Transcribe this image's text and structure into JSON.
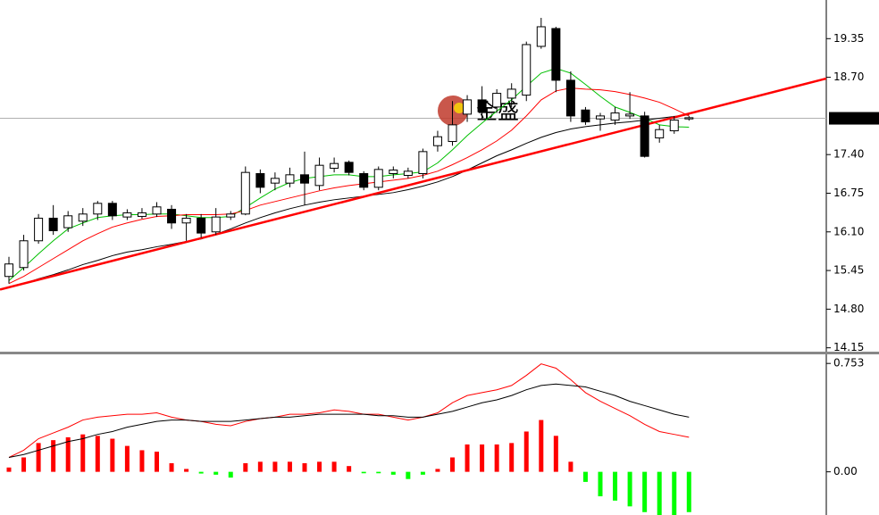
{
  "chart_data": [
    {
      "type": "candlestick",
      "categories": [
        null,
        null,
        null,
        null,
        null,
        null,
        null,
        null,
        null,
        null,
        null,
        null,
        null,
        null,
        null,
        null,
        null,
        null,
        null,
        null,
        null,
        null,
        null,
        null,
        null,
        null,
        null,
        null,
        null,
        null,
        null,
        null,
        null,
        null,
        null,
        null,
        null,
        null,
        null,
        null,
        null,
        null,
        null,
        null,
        null,
        null,
        null
      ],
      "open": [
        15.35,
        15.5,
        15.95,
        16.33,
        16.17,
        16.28,
        16.4,
        16.58,
        16.35,
        16.36,
        16.4,
        16.48,
        16.25,
        16.33,
        16.1,
        16.35,
        16.4,
        17.08,
        16.92,
        16.92,
        17.06,
        16.88,
        17.17,
        17.27,
        17.08,
        16.85,
        17.08,
        17.05,
        17.08,
        17.55,
        17.62,
        18.08,
        18.32,
        18.2,
        18.35,
        18.4,
        19.22,
        19.52,
        18.65,
        18.15,
        18.0,
        17.98,
        18.05,
        18.05,
        17.68,
        17.8,
        18.0
      ],
      "high": [
        15.68,
        16.05,
        16.4,
        16.55,
        16.45,
        16.5,
        16.62,
        16.62,
        16.48,
        16.5,
        16.6,
        16.55,
        16.4,
        16.4,
        16.5,
        16.45,
        17.2,
        17.15,
        17.1,
        17.18,
        17.45,
        17.35,
        17.35,
        17.3,
        17.12,
        17.2,
        17.2,
        17.18,
        17.5,
        17.8,
        18.3,
        18.4,
        18.55,
        18.5,
        18.6,
        19.3,
        19.7,
        19.55,
        18.8,
        18.2,
        18.1,
        18.2,
        18.45,
        18.12,
        17.9,
        18.05,
        18.05
      ],
      "low": [
        15.23,
        15.45,
        15.9,
        16.05,
        16.1,
        16.2,
        16.3,
        16.3,
        16.3,
        16.32,
        16.35,
        16.15,
        15.95,
        16.0,
        16.05,
        16.3,
        16.38,
        16.75,
        16.8,
        16.85,
        16.55,
        16.8,
        17.1,
        17.05,
        16.8,
        16.8,
        17.0,
        17.0,
        17.0,
        17.45,
        17.55,
        17.95,
        18.0,
        18.1,
        18.2,
        18.3,
        19.18,
        18.45,
        17.95,
        17.9,
        17.8,
        17.9,
        18.0,
        17.35,
        17.6,
        17.75,
        17.97
      ],
      "close": [
        15.56,
        15.95,
        16.33,
        16.12,
        16.37,
        16.4,
        16.58,
        16.37,
        16.42,
        16.42,
        16.52,
        16.25,
        16.33,
        16.08,
        16.35,
        16.4,
        17.1,
        16.85,
        17.0,
        17.06,
        16.92,
        17.22,
        17.25,
        17.1,
        16.85,
        17.15,
        17.14,
        17.12,
        17.45,
        17.7,
        17.9,
        18.32,
        18.12,
        18.43,
        18.5,
        19.25,
        19.55,
        18.65,
        18.05,
        17.95,
        18.05,
        18.1,
        18.08,
        17.37,
        17.82,
        17.98,
        18.02
      ],
      "up_color": "#ffffff",
      "down_color": "#000000",
      "lines": [
        {
          "color": "#00c000",
          "values": [
            15.28,
            15.5,
            15.73,
            15.95,
            16.15,
            16.25,
            16.34,
            16.37,
            16.39,
            16.39,
            16.4,
            16.4,
            16.37,
            16.34,
            16.34,
            16.36,
            16.51,
            16.67,
            16.82,
            16.93,
            17.0,
            17.03,
            17.06,
            17.06,
            17.03,
            17.03,
            17.06,
            17.08,
            17.11,
            17.26,
            17.48,
            17.72,
            17.93,
            18.13,
            18.32,
            18.55,
            18.77,
            18.85,
            18.77,
            18.58,
            18.38,
            18.2,
            18.11,
            18.01,
            17.9,
            17.87,
            17.86
          ]
        },
        {
          "color": "#ff0000",
          "values": [
            15.23,
            15.35,
            15.5,
            15.65,
            15.8,
            15.95,
            16.07,
            16.18,
            16.25,
            16.31,
            16.36,
            16.37,
            16.39,
            16.39,
            16.39,
            16.4,
            16.46,
            16.55,
            16.61,
            16.67,
            16.73,
            16.79,
            16.84,
            16.88,
            16.91,
            16.94,
            16.97,
            17.0,
            17.05,
            17.12,
            17.23,
            17.35,
            17.48,
            17.63,
            17.81,
            18.05,
            18.32,
            18.47,
            18.52,
            18.5,
            18.49,
            18.46,
            18.41,
            18.35,
            18.28,
            18.17,
            18.05
          ]
        },
        {
          "color": "#000000",
          "values": [
            15.17,
            15.23,
            15.31,
            15.38,
            15.46,
            15.55,
            15.62,
            15.7,
            15.76,
            15.8,
            15.85,
            15.89,
            15.94,
            15.98,
            16.06,
            16.15,
            16.25,
            16.34,
            16.42,
            16.49,
            16.55,
            16.6,
            16.64,
            16.67,
            16.7,
            16.73,
            16.76,
            16.81,
            16.87,
            16.94,
            17.03,
            17.14,
            17.26,
            17.38,
            17.48,
            17.59,
            17.69,
            17.77,
            17.83,
            17.87,
            17.9,
            17.93,
            17.95,
            17.98,
            18.01,
            18.04,
            18.07
          ]
        }
      ],
      "trendline": {
        "color": "#ff0000",
        "x": [
          -0.6,
          55.3
        ],
        "values": [
          15.13,
          18.68
        ]
      },
      "last_price": 18.01,
      "watermark": "金盛",
      "ylim": [
        14.1,
        20.0
      ],
      "yticks": [
        19.35,
        {
          "value": 18.7,
          "label": "18.70"
        },
        {
          "value": 17.4,
          "label": "17.40"
        },
        16.75,
        {
          "value": 16.1,
          "label": "16.10"
        },
        15.45,
        {
          "value": 14.8,
          "label": "14.80"
        },
        14.15
      ]
    },
    {
      "type": "macd",
      "values": [
        0.03,
        0.1,
        0.2,
        0.22,
        0.24,
        0.26,
        0.25,
        0.23,
        0.18,
        0.15,
        0.14,
        0.06,
        0.02,
        -0.012,
        -0.02,
        -0.04,
        0.06,
        0.07,
        0.07,
        0.07,
        0.06,
        0.07,
        0.07,
        0.04,
        -0.01,
        -0.01,
        -0.02,
        -0.05,
        -0.02,
        0.02,
        0.1,
        0.19,
        0.19,
        0.19,
        0.2,
        0.28,
        0.36,
        0.25,
        0.07,
        -0.07,
        -0.17,
        -0.2,
        -0.24,
        -0.28,
        -0.3,
        -0.3,
        -0.28
      ],
      "positive_color": "#ff0000",
      "negative_color": "#00ff00",
      "lines": [
        {
          "color": "#ff0000",
          "values": [
            0.1,
            0.15,
            0.23,
            0.27,
            0.31,
            0.36,
            0.38,
            0.39,
            0.4,
            0.4,
            0.41,
            0.38,
            0.36,
            0.35,
            0.33,
            0.32,
            0.35,
            0.37,
            0.38,
            0.4,
            0.4,
            0.41,
            0.43,
            0.42,
            0.4,
            0.4,
            0.38,
            0.36,
            0.38,
            0.41,
            0.48,
            0.53,
            0.55,
            0.57,
            0.6,
            0.67,
            0.75,
            0.72,
            0.64,
            0.55,
            0.49,
            0.44,
            0.39,
            0.33,
            0.28,
            0.26,
            0.24
          ]
        },
        {
          "color": "#000000",
          "values": [
            0.1,
            0.12,
            0.15,
            0.18,
            0.21,
            0.23,
            0.26,
            0.28,
            0.31,
            0.33,
            0.35,
            0.36,
            0.36,
            0.35,
            0.35,
            0.35,
            0.36,
            0.37,
            0.38,
            0.38,
            0.39,
            0.4,
            0.4,
            0.4,
            0.4,
            0.39,
            0.39,
            0.38,
            0.38,
            0.4,
            0.42,
            0.45,
            0.48,
            0.5,
            0.53,
            0.57,
            0.6,
            0.61,
            0.6,
            0.59,
            0.56,
            0.53,
            0.49,
            0.46,
            0.43,
            0.4,
            0.38
          ]
        }
      ],
      "ylim": [
        -0.3,
        0.81
      ],
      "yticks": [
        0.753,
        {
          "value": 0,
          "label": "0.00"
        }
      ]
    }
  ]
}
